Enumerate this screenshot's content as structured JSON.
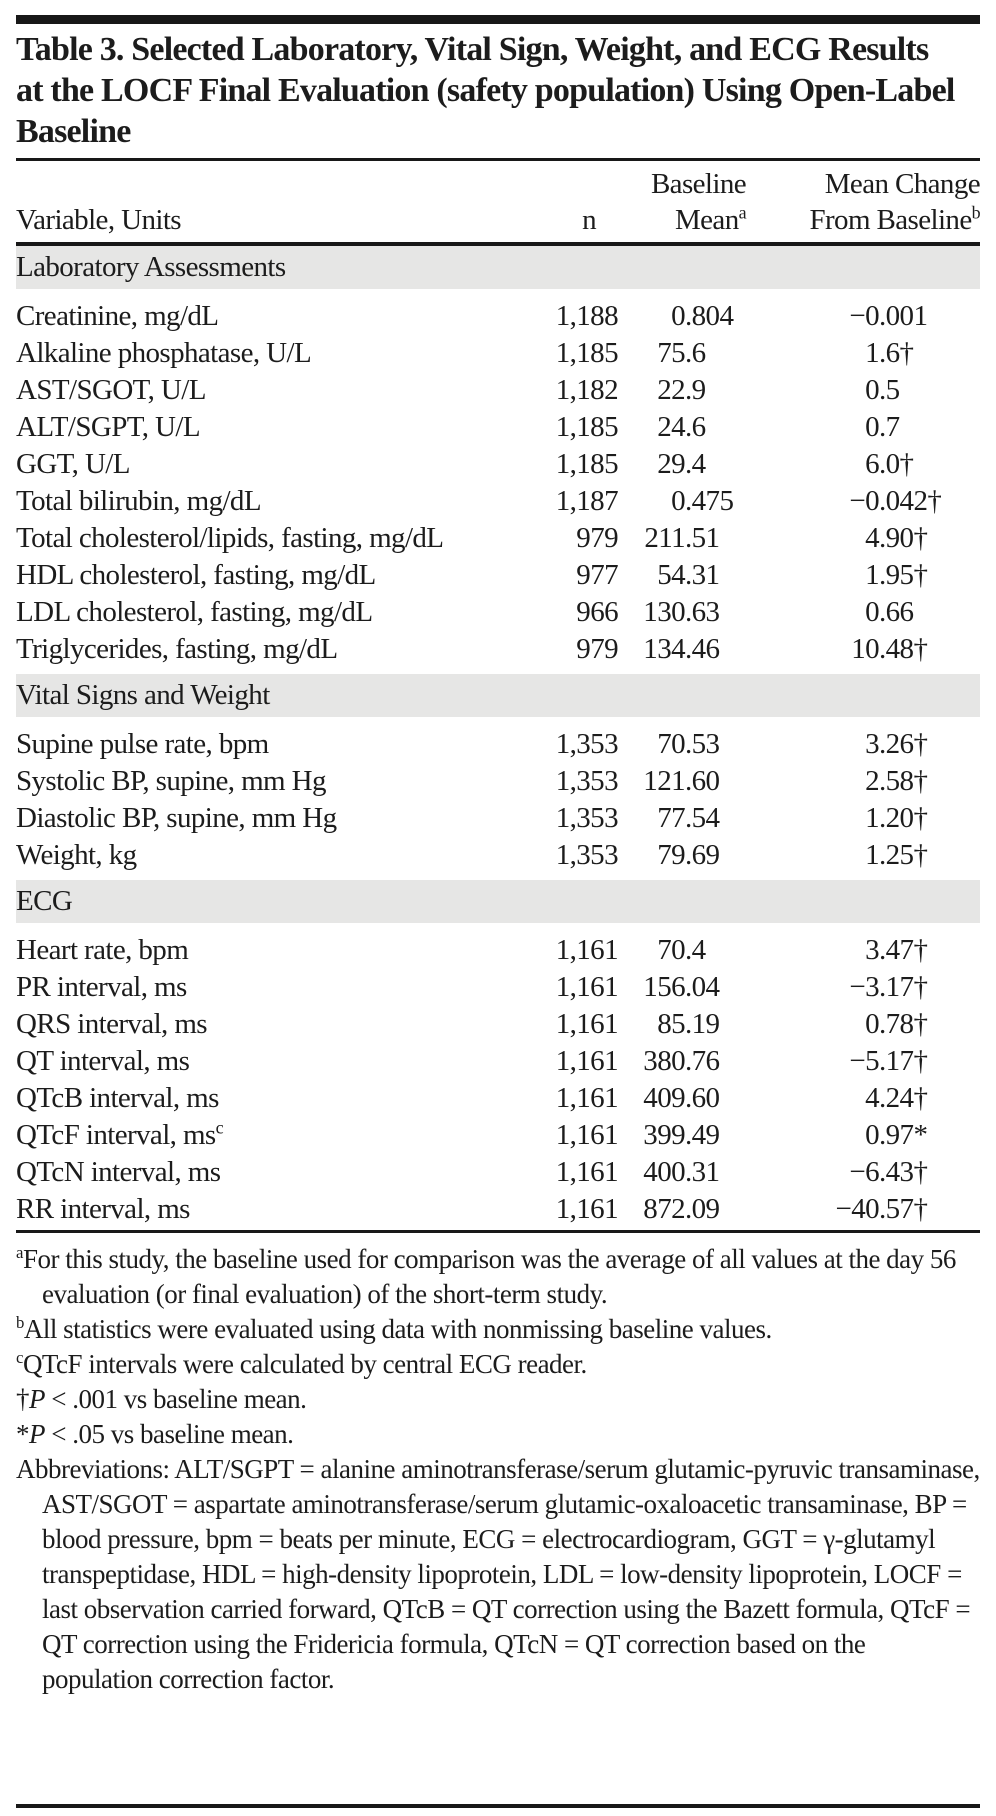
{
  "title": "Table 3. Selected Laboratory, Vital Sign, Weight, and ECG Results at the LOCF Final Evaluation (safety population) Using Open-Label Baseline",
  "header": {
    "variable": "Variable, Units",
    "n": "n",
    "baseline_line1": "Baseline",
    "baseline_line2": "Mean",
    "baseline_sup": "a",
    "change_line1": "Mean Change",
    "change_line2": "From Baseline",
    "change_sup": "b"
  },
  "sections": [
    {
      "title": "Laboratory Assessments",
      "rows": [
        {
          "variable": "Creatinine, mg/dL",
          "n": "1,188",
          "baseline_mean": "0.804",
          "mean_change": "−0.001"
        },
        {
          "variable": "Alkaline phosphatase, U/L",
          "n": "1,185",
          "baseline_mean": "75.6",
          "mean_change": "1.6†"
        },
        {
          "variable": "AST/SGOT, U/L",
          "n": "1,182",
          "baseline_mean": "22.9",
          "mean_change": "0.5"
        },
        {
          "variable": "ALT/SGPT, U/L",
          "n": "1,185",
          "baseline_mean": "24.6",
          "mean_change": "0.7"
        },
        {
          "variable": "GGT, U/L",
          "n": "1,185",
          "baseline_mean": "29.4",
          "mean_change": "6.0†"
        },
        {
          "variable": "Total bilirubin, mg/dL",
          "n": "1,187",
          "baseline_mean": "0.475",
          "mean_change": "−0.042†"
        },
        {
          "variable": "Total cholesterol/lipids, fasting, mg/dL",
          "n": "979",
          "baseline_mean": "211.51",
          "mean_change": "4.90†"
        },
        {
          "variable": "HDL cholesterol, fasting, mg/dL",
          "n": "977",
          "baseline_mean": "54.31",
          "mean_change": "1.95†"
        },
        {
          "variable": "LDL cholesterol, fasting, mg/dL",
          "n": "966",
          "baseline_mean": "130.63",
          "mean_change": "0.66"
        },
        {
          "variable": "Triglycerides, fasting, mg/dL",
          "n": "979",
          "baseline_mean": "134.46",
          "mean_change": "10.48†"
        }
      ]
    },
    {
      "title": "Vital Signs and Weight",
      "rows": [
        {
          "variable": "Supine pulse rate, bpm",
          "n": "1,353",
          "baseline_mean": "70.53",
          "mean_change": "3.26†"
        },
        {
          "variable": "Systolic BP, supine, mm Hg",
          "n": "1,353",
          "baseline_mean": "121.60",
          "mean_change": "2.58†"
        },
        {
          "variable": "Diastolic BP, supine, mm Hg",
          "n": "1,353",
          "baseline_mean": "77.54",
          "mean_change": "1.20†"
        },
        {
          "variable": "Weight, kg",
          "n": "1,353",
          "baseline_mean": "79.69",
          "mean_change": "1.25†"
        }
      ]
    },
    {
      "title": "ECG",
      "rows": [
        {
          "variable": "Heart rate, bpm",
          "n": "1,161",
          "baseline_mean": "70.4",
          "mean_change": "3.47†"
        },
        {
          "variable": "PR interval, ms",
          "n": "1,161",
          "baseline_mean": "156.04",
          "mean_change": "−3.17†"
        },
        {
          "variable": "QRS interval, ms",
          "n": "1,161",
          "baseline_mean": "85.19",
          "mean_change": "0.78†"
        },
        {
          "variable": "QT interval, ms",
          "n": "1,161",
          "baseline_mean": "380.76",
          "mean_change": "−5.17†"
        },
        {
          "variable": "QTcB interval, ms",
          "n": "1,161",
          "baseline_mean": "409.60",
          "mean_change": "4.24†"
        },
        {
          "variable": "QTcF interval, ms",
          "variable_sup": "c",
          "n": "1,161",
          "baseline_mean": "399.49",
          "mean_change": "0.97*"
        },
        {
          "variable": "QTcN interval, ms",
          "n": "1,161",
          "baseline_mean": "400.31",
          "mean_change": "−6.43†"
        },
        {
          "variable": "RR interval, ms",
          "n": "1,161",
          "baseline_mean": "872.09",
          "mean_change": "−40.57†"
        }
      ]
    }
  ],
  "footnotes": [
    {
      "sup": "a",
      "text": "For this study, the baseline used for comparison was the average of all values at the day 56 evaluation (or final evaluation) of the short-term study."
    },
    {
      "sup": "b",
      "text": "All statistics were evaluated using data with nonmissing baseline values."
    },
    {
      "sup": "c",
      "text": "QTcF intervals were calculated by central ECG reader."
    },
    {
      "lead": "†",
      "italic": "P",
      "text": " < .001 vs baseline mean."
    },
    {
      "lead": "*",
      "italic": "P",
      "text": " < .05 vs baseline mean."
    },
    {
      "text": "Abbreviations: ALT/SGPT = alanine aminotransferase/serum glutamic-pyruvic transaminase, AST/SGOT = aspartate aminotransferase/serum glutamic-oxaloacetic transaminase, BP = blood pressure, bpm = beats per minute, ECG = electrocardiogram, GGT = γ-glutamyl transpeptidase, HDL = high-density lipoprotein, LDL = low-density lipoprotein, LOCF = last observation carried forward, QTcB = QT correction using the Bazett formula, QTcF = QT correction using the Fridericia formula, QTcN = QT correction based on the population correction factor."
    }
  ],
  "colors": {
    "band": "#e6e6e5",
    "text": "#1c1c1c",
    "rule": "#181818",
    "page_background": "#ffffff"
  }
}
